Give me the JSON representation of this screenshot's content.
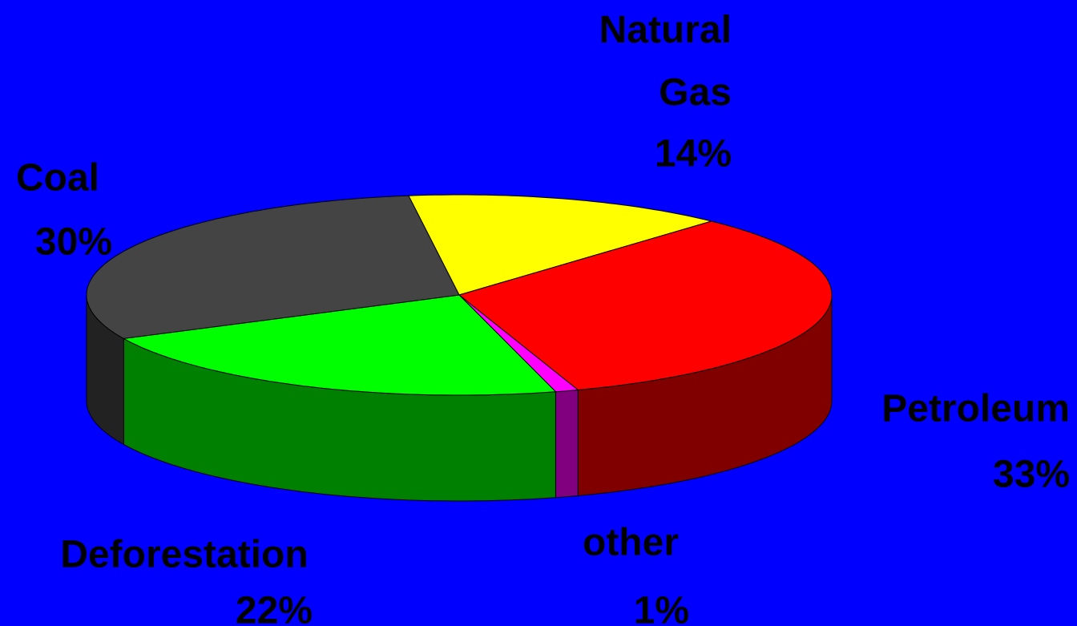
{
  "chart_data": {
    "type": "pie3d",
    "categories": [
      "Natural Gas",
      "Petroleum",
      "other",
      "Deforestation",
      "Coal"
    ],
    "values": [
      14,
      33,
      1,
      22,
      30
    ],
    "value_labels": [
      "14%",
      "33%",
      "1%",
      "22%",
      "30%"
    ],
    "colors": [
      "#ffff00",
      "#ff0000",
      "#ff00ff",
      "#00ff00",
      "#444444"
    ]
  }
}
